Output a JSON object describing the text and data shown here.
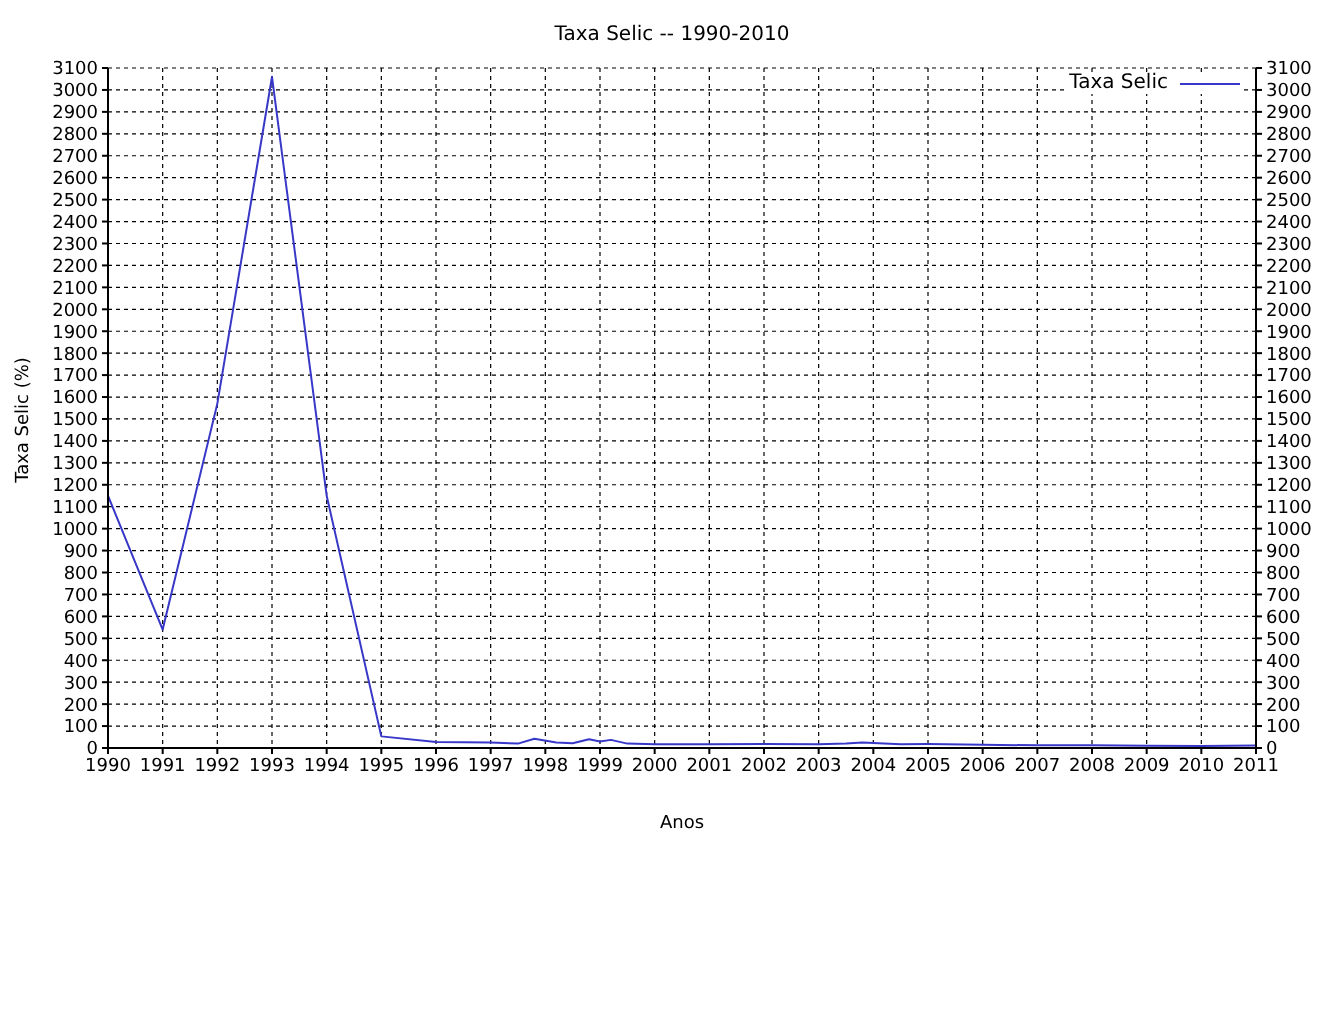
{
  "chart_data": {
    "type": "line",
    "title": "Taxa Selic -- 1990-2010",
    "xlabel": "Anos",
    "ylabel": "Taxa Selic (%)",
    "series": [
      {
        "name": "Taxa Selic",
        "color": "#3838c8",
        "x": [
          1990,
          1991,
          1992,
          1993,
          1994,
          1995,
          1996,
          1997,
          1997.5,
          1997.8,
          1998.2,
          1998.5,
          1998.8,
          1999,
          1999.2,
          1999.5,
          2000,
          2001,
          2002,
          2003,
          2003.5,
          2003.8,
          2004.5,
          2005,
          2006,
          2007,
          2008,
          2009,
          2010,
          2011
        ],
        "values": [
          1150,
          540,
          1570,
          3060,
          1150,
          53,
          27,
          25,
          20,
          42,
          25,
          22,
          40,
          30,
          37,
          20,
          17,
          17,
          18,
          17,
          20,
          25,
          17,
          18,
          15,
          12,
          12,
          10,
          9,
          11
        ]
      }
    ],
    "xlim": [
      1990,
      2011
    ],
    "xticks": [
      1990,
      1991,
      1992,
      1993,
      1994,
      1995,
      1996,
      1997,
      1998,
      1999,
      2000,
      2001,
      2002,
      2003,
      2004,
      2005,
      2006,
      2007,
      2008,
      2009,
      2010,
      2011
    ],
    "ylim": [
      0,
      3100
    ],
    "yticks": [
      0,
      100,
      200,
      300,
      400,
      500,
      600,
      700,
      800,
      900,
      1000,
      1100,
      1200,
      1300,
      1400,
      1500,
      1600,
      1700,
      1800,
      1900,
      2000,
      2100,
      2200,
      2300,
      2400,
      2500,
      2600,
      2700,
      2800,
      2900,
      3000,
      3100
    ],
    "y2lim": [
      0,
      3100
    ],
    "y2ticks": [
      0,
      100,
      200,
      300,
      400,
      500,
      600,
      700,
      800,
      900,
      1000,
      1100,
      1200,
      1300,
      1400,
      1500,
      1600,
      1700,
      1800,
      1900,
      2000,
      2100,
      2200,
      2300,
      2400,
      2500,
      2600,
      2700,
      2800,
      2900,
      3000,
      3100
    ],
    "grid": true,
    "legend": "top right",
    "marker": "none",
    "line_style": "solid"
  }
}
